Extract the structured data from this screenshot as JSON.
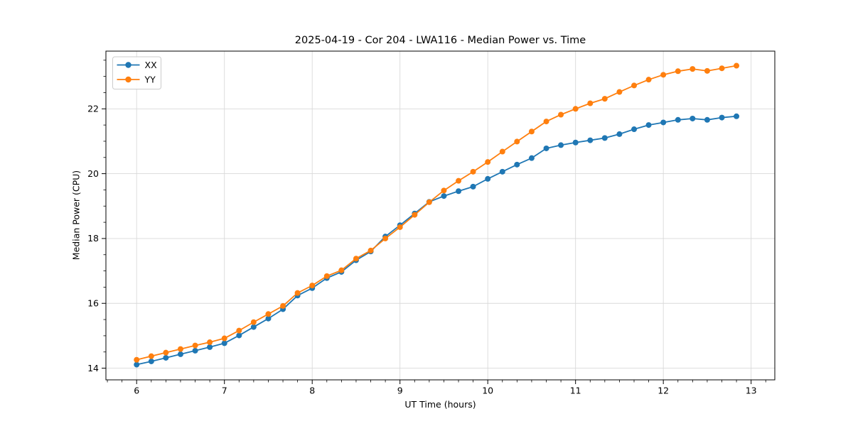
{
  "figure": {
    "background": "#ffffff"
  },
  "chart_data": {
    "type": "line",
    "title": "2025-04-19 - Cor 204 - LWA116 - Median Power vs. Time",
    "xlabel": "UT Time (hours)",
    "ylabel": "Median Power (CPU)",
    "xlim": [
      5.65,
      13.27
    ],
    "ylim": [
      13.64,
      23.78
    ],
    "x_ticks": [
      6,
      7,
      8,
      9,
      10,
      11,
      12,
      13
    ],
    "y_ticks": [
      14,
      16,
      18,
      20,
      22
    ],
    "x_minor_step": 0.166667,
    "y_minor_step": 0.5,
    "grid": true,
    "grid_color": "#d9d9d9",
    "spine_color": "#000000",
    "legend_position": "upper-left",
    "x": [
      6.0,
      6.167,
      6.333,
      6.5,
      6.667,
      6.833,
      7.0,
      7.167,
      7.333,
      7.5,
      7.667,
      7.833,
      8.0,
      8.167,
      8.333,
      8.5,
      8.667,
      8.833,
      9.0,
      9.167,
      9.333,
      9.5,
      9.667,
      9.833,
      10.0,
      10.167,
      10.333,
      10.5,
      10.667,
      10.833,
      11.0,
      11.167,
      11.333,
      11.5,
      11.667,
      11.833,
      12.0,
      12.167,
      12.333,
      12.5,
      12.667,
      12.833
    ],
    "series": [
      {
        "name": "XX",
        "color": "#1f77b4",
        "values": [
          14.11,
          14.21,
          14.32,
          14.43,
          14.54,
          14.65,
          14.77,
          15.01,
          15.27,
          15.53,
          15.82,
          16.24,
          16.47,
          16.78,
          16.97,
          17.33,
          17.6,
          18.06,
          18.41,
          18.77,
          19.13,
          19.31,
          19.46,
          19.6,
          19.84,
          20.06,
          20.28,
          20.48,
          20.78,
          20.88,
          20.96,
          21.03,
          21.1,
          21.22,
          21.37,
          21.5,
          21.58,
          21.66,
          21.7,
          21.66,
          21.73,
          21.77
        ]
      },
      {
        "name": "YY",
        "color": "#ff7f0e",
        "values": [
          14.26,
          14.37,
          14.48,
          14.59,
          14.7,
          14.8,
          14.92,
          15.16,
          15.42,
          15.67,
          15.92,
          16.32,
          16.55,
          16.84,
          17.02,
          17.38,
          17.63,
          18.0,
          18.35,
          18.73,
          19.12,
          19.48,
          19.78,
          20.06,
          20.36,
          20.68,
          20.99,
          21.3,
          21.61,
          21.82,
          22.0,
          22.17,
          22.31,
          22.52,
          22.72,
          22.9,
          23.05,
          23.16,
          23.23,
          23.17,
          23.25,
          23.33
        ]
      }
    ]
  }
}
